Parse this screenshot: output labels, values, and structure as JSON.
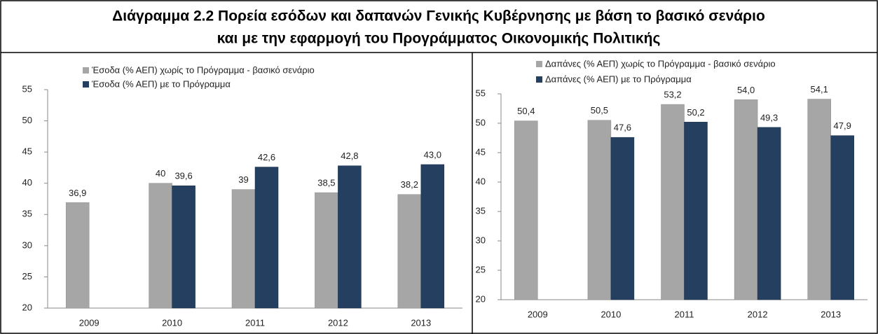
{
  "title_lines": [
    "Διάγραμμα 2.2  Πορεία εσόδων και δαπανών Γενικής Κυβέρνησης με βάση το βασικό σενάριο",
    "και με την εφαρμογή του Προγράμματος Οικονομικής Πολιτικής"
  ],
  "chart_data": [
    {
      "type": "bar",
      "categories": [
        "2009",
        "2010",
        "2011",
        "2012",
        "2013"
      ],
      "series": [
        {
          "name": "Έσοδα (% ΑΕΠ) χωρίς το Πρόγραμμα - βασικό σενάριο",
          "color": "#a6a6a6",
          "values": [
            36.9,
            40,
            39,
            38.5,
            38.2
          ],
          "value_labels": [
            "36,9",
            "40",
            "39",
            "38,5",
            "38,2"
          ]
        },
        {
          "name": "Έσοδα (% ΑΕΠ) με το Πρόγραμμα",
          "color": "#243f60",
          "values": [
            null,
            39.6,
            42.6,
            42.8,
            43.0
          ],
          "value_labels": [
            null,
            "39,6",
            "42,6",
            "42,8",
            "43,0"
          ]
        }
      ],
      "ylim": [
        20,
        55
      ],
      "yticks": [
        20,
        25,
        30,
        35,
        40,
        45,
        50,
        55
      ],
      "grid": false
    },
    {
      "type": "bar",
      "categories": [
        "2009",
        "2010",
        "2011",
        "2012",
        "2013"
      ],
      "series": [
        {
          "name": "Δαπάνες (% ΑΕΠ) χωρίς το Πρόγραμμα - βασικό σενάριο",
          "color": "#a6a6a6",
          "values": [
            50.4,
            50.5,
            53.2,
            54.0,
            54.1
          ],
          "value_labels": [
            "50,4",
            "50,5",
            "53,2",
            "54,0",
            "54,1"
          ]
        },
        {
          "name": "Δαπάνες (% ΑΕΠ) με το Πρόγραμμα",
          "color": "#243f60",
          "values": [
            null,
            47.6,
            50.2,
            49.3,
            47.9
          ],
          "value_labels": [
            null,
            "47,6",
            "50,2",
            "49,3",
            "47,9"
          ]
        }
      ],
      "ylim": [
        20,
        55
      ],
      "yticks": [
        20,
        25,
        30,
        35,
        40,
        45,
        50,
        55
      ],
      "grid": false
    }
  ]
}
